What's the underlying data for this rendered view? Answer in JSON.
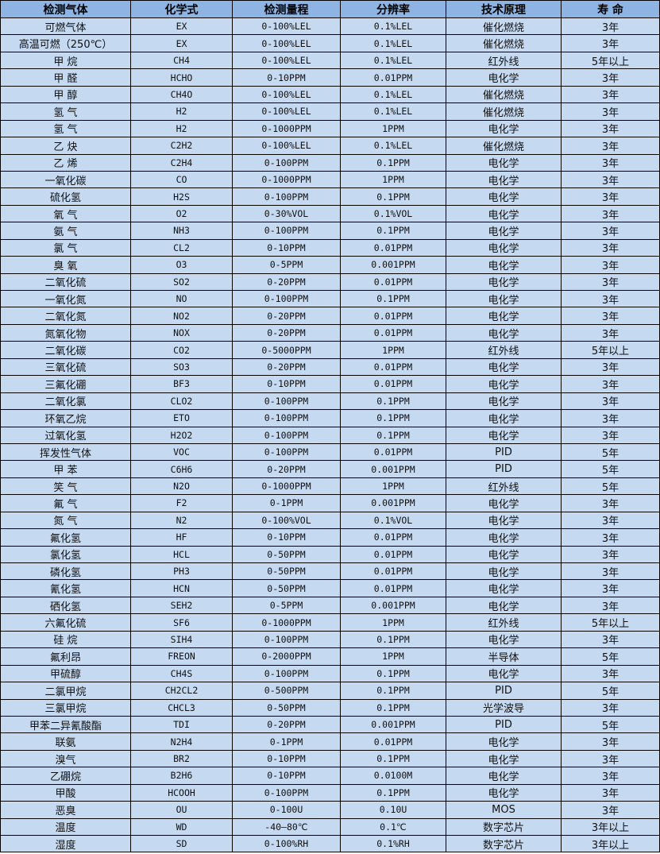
{
  "colors": {
    "header_bg": "#8db4e2",
    "row_bg": "#c5d9f1",
    "border": "#000000"
  },
  "headers": [
    "检测气体",
    "化学式",
    "检测量程",
    "分辨率",
    "技术原理",
    "寿 命"
  ],
  "rows": [
    [
      "可燃气体",
      "EX",
      "0-100%LEL",
      "0.1%LEL",
      "催化燃烧",
      "3年"
    ],
    [
      "高温可燃（250℃）",
      "EX",
      "0-100%LEL",
      "0.1%LEL",
      "催化燃烧",
      "3年"
    ],
    [
      "甲 烷",
      "CH4",
      "0-100%LEL",
      "0.1%LEL",
      "红外线",
      "5年以上"
    ],
    [
      "甲 醛",
      "HCHO",
      "0-10PPM",
      "0.01PPM",
      "电化学",
      "3年"
    ],
    [
      "甲 醇",
      "CH4O",
      "0-100%LEL",
      "0.1%LEL",
      "催化燃烧",
      "3年"
    ],
    [
      "氢 气",
      "H2",
      "0-100%LEL",
      "0.1%LEL",
      "催化燃烧",
      "3年"
    ],
    [
      "氢 气",
      "H2",
      "0-1000PPM",
      "1PPM",
      "电化学",
      "3年"
    ],
    [
      "乙 炔",
      "C2H2",
      "0-100%LEL",
      "0.1%LEL",
      "催化燃烧",
      "3年"
    ],
    [
      "乙 烯",
      "C2H4",
      "0-100PPM",
      "0.1PPM",
      "电化学",
      "3年"
    ],
    [
      "一氧化碳",
      "CO",
      "0-1000PPM",
      "1PPM",
      "电化学",
      "3年"
    ],
    [
      "硫化氢",
      "H2S",
      "0-100PPM",
      "0.1PPM",
      "电化学",
      "3年"
    ],
    [
      "氧 气",
      "O2",
      "0-30%VOL",
      "0.1%VOL",
      "电化学",
      "3年"
    ],
    [
      "氨 气",
      "NH3",
      "0-100PPM",
      "0.1PPM",
      "电化学",
      "3年"
    ],
    [
      "氯 气",
      "CL2",
      "0-10PPM",
      "0.01PPM",
      "电化学",
      "3年"
    ],
    [
      "臭 氧",
      "O3",
      "0-5PPM",
      "0.001PPM",
      "电化学",
      "3年"
    ],
    [
      "二氧化硫",
      "SO2",
      "0-20PPM",
      "0.01PPM",
      "电化学",
      "3年"
    ],
    [
      "一氧化氮",
      "NO",
      "0-100PPM",
      "0.1PPM",
      "电化学",
      "3年"
    ],
    [
      "二氧化氮",
      "NO2",
      "0-20PPM",
      "0.01PPM",
      "电化学",
      "3年"
    ],
    [
      "氮氧化物",
      "NOX",
      "0-20PPM",
      "0.01PPM",
      "电化学",
      "3年"
    ],
    [
      "二氧化碳",
      "CO2",
      "0-5000PPM",
      "1PPM",
      "红外线",
      "5年以上"
    ],
    [
      "三氧化硫",
      "SO3",
      "0-20PPM",
      "0.01PPM",
      "电化学",
      "3年"
    ],
    [
      "三氟化硼",
      "BF3",
      "0-10PPM",
      "0.01PPM",
      "电化学",
      "3年"
    ],
    [
      "二氧化氯",
      "CLO2",
      "0-100PPM",
      "0.1PPM",
      "电化学",
      "3年"
    ],
    [
      "环氧乙烷",
      "ETO",
      "0-100PPM",
      "0.1PPM",
      "电化学",
      "3年"
    ],
    [
      "过氧化氢",
      "H2O2",
      "0-100PPM",
      "0.1PPM",
      "电化学",
      "3年"
    ],
    [
      "挥发性气体",
      "VOC",
      "0-100PPM",
      "0.01PPM",
      "PID",
      "5年"
    ],
    [
      "甲 苯",
      "C6H6",
      "0-20PPM",
      "0.001PPM",
      "PID",
      "5年"
    ],
    [
      "笑 气",
      "N2O",
      "0-1000PPM",
      "1PPM",
      "红外线",
      "5年"
    ],
    [
      "氟 气",
      "F2",
      "0-1PPM",
      "0.001PPM",
      "电化学",
      "3年"
    ],
    [
      "氮 气",
      "N2",
      "0-100%VOL",
      "0.1%VOL",
      "电化学",
      "3年"
    ],
    [
      "氟化氢",
      "HF",
      "0-10PPM",
      "0.01PPM",
      "电化学",
      "3年"
    ],
    [
      "氯化氢",
      "HCL",
      "0-50PPM",
      "0.01PPM",
      "电化学",
      "3年"
    ],
    [
      "磷化氢",
      "PH3",
      "0-50PPM",
      "0.01PPM",
      "电化学",
      "3年"
    ],
    [
      "氰化氢",
      "HCN",
      "0-50PPM",
      "0.01PPM",
      "电化学",
      "3年"
    ],
    [
      "硒化氢",
      "SEH2",
      "0-5PPM",
      "0.001PPM",
      "电化学",
      "3年"
    ],
    [
      "六氟化硫",
      "SF6",
      "0-1000PPM",
      "1PPM",
      "红外线",
      "5年以上"
    ],
    [
      "硅 烷",
      "SIH4",
      "0-100PPM",
      "0.1PPM",
      "电化学",
      "3年"
    ],
    [
      "氟利昂",
      "FREON",
      "0-2000PPM",
      "1PPM",
      "半导体",
      "5年"
    ],
    [
      "甲硫醇",
      "CH4S",
      "0-100PPM",
      "0.1PPM",
      "电化学",
      "3年"
    ],
    [
      "二氯甲烷",
      "CH2CL2",
      "0-500PPM",
      "0.1PPM",
      "PID",
      "5年"
    ],
    [
      "三氯甲烷",
      "CHCL3",
      "0-50PPM",
      "0.1PPM",
      "光学波导",
      "3年"
    ],
    [
      "甲苯二异氰酸酯",
      "TDI",
      "0-20PPM",
      "0.001PPM",
      "PID",
      "5年"
    ],
    [
      "联氨",
      "N2H4",
      "0-1PPM",
      "0.01PPM",
      "电化学",
      "3年"
    ],
    [
      "溴气",
      "BR2",
      "0-10PPM",
      "0.1PPM",
      "电化学",
      "3年"
    ],
    [
      "乙硼烷",
      "B2H6",
      "0-10PPM",
      "0.0100M",
      "电化学",
      "3年"
    ],
    [
      "甲酸",
      "HCOOH",
      "0-100PPM",
      "0.1PPM",
      "电化学",
      "3年"
    ],
    [
      "恶臭",
      "OU",
      "0-100U",
      "0.10U",
      "MOS",
      "3年"
    ],
    [
      "温度",
      "WD",
      "-40—80℃",
      "0.1℃",
      "数字芯片",
      "3年以上"
    ],
    [
      "湿度",
      "SD",
      "0-100%RH",
      "0.1%RH",
      "数字芯片",
      "3年以上"
    ]
  ]
}
